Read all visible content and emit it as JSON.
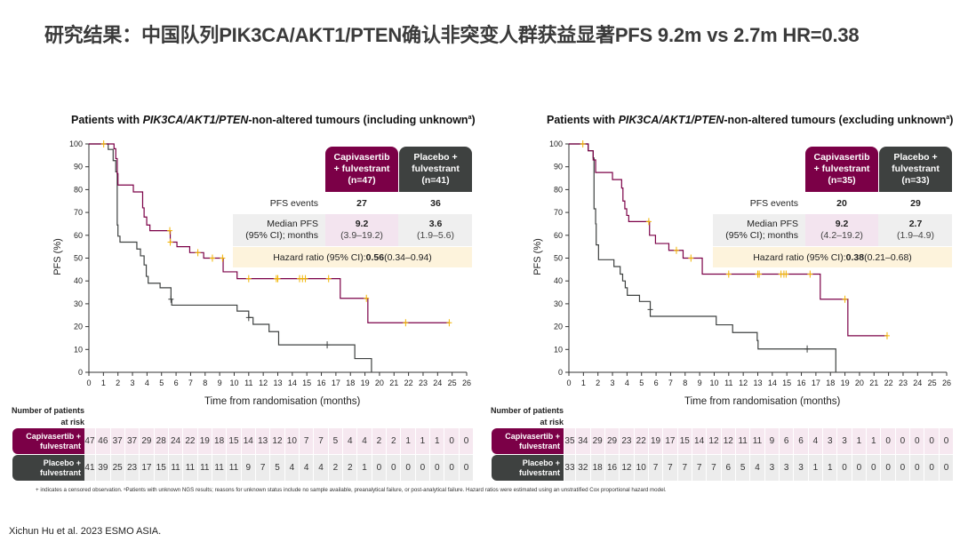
{
  "slide_title": "研究结果：中国队列PIK3CA/AKT1/PTEN确认非突变人群获益显著PFS 9.2m vs 2.7m HR=0.38",
  "footnote": "+ indicates a censored observation. ᵃPatients with unknown NGS results; reasons for unknown status include no sample available, preanalytical failure, or post-analytical failure. Hazard ratios were estimated using an unstratified Cox proportional hazard model.",
  "citation": "Xichun Hu et al. 2023 ESMO ASIA.",
  "colors": {
    "capivasertib": "#7b0047",
    "placebo": "#3e4140",
    "censor": "#f2b400"
  },
  "chart_data": [
    {
      "type": "line",
      "subtype": "kaplan-meier step",
      "title_parts": {
        "pre": "Patients with ",
        "italic": "PIK3CA/AKT1/PTEN",
        "post": "-non-altered tumours (including unknown",
        "sup": "a",
        "end": ")"
      },
      "xlabel": "Time from randomisation (months)",
      "ylabel": "PFS (%)",
      "xlim": [
        0,
        26
      ],
      "ylim": [
        0,
        100
      ],
      "xticks": [
        0,
        1,
        2,
        3,
        4,
        5,
        6,
        7,
        8,
        9,
        10,
        11,
        12,
        13,
        14,
        15,
        16,
        17,
        18,
        19,
        20,
        21,
        22,
        23,
        24,
        25,
        26
      ],
      "yticks": [
        0,
        10,
        20,
        30,
        40,
        50,
        60,
        70,
        80,
        90,
        100
      ],
      "grid": false,
      "series": [
        {
          "name": "Capivasertib + fulvestrant",
          "color": "#7b0047",
          "steps": [
            [
              0,
              100
            ],
            [
              1.73,
              97.9
            ],
            [
              1.85,
              93.6
            ],
            [
              1.95,
              87
            ],
            [
              2.0,
              82
            ],
            [
              3.06,
              79
            ],
            [
              3.7,
              72
            ],
            [
              3.8,
              68
            ],
            [
              3.98,
              64.5
            ],
            [
              4.2,
              62
            ],
            [
              5.6,
              57
            ],
            [
              6.06,
              55
            ],
            [
              6.94,
              52.4
            ],
            [
              7.9,
              50
            ],
            [
              9.24,
              44
            ],
            [
              10.2,
              41
            ],
            [
              17.3,
              32.4
            ],
            [
              19.2,
              21.7
            ]
          ],
          "end": 24.8,
          "censored": [
            [
              1.02,
              100
            ],
            [
              5.57,
              62
            ],
            [
              5.6,
              57
            ],
            [
              7.5,
              52.4
            ],
            [
              8.5,
              50
            ],
            [
              9.2,
              50
            ],
            [
              11.0,
              41
            ],
            [
              12.9,
              41
            ],
            [
              13.0,
              41
            ],
            [
              14.5,
              41
            ],
            [
              14.7,
              41
            ],
            [
              14.9,
              41
            ],
            [
              16.5,
              41
            ],
            [
              19.1,
              32.4
            ],
            [
              21.8,
              21.7
            ],
            [
              24.8,
              21.7
            ]
          ]
        },
        {
          "name": "Placebo + fulvestrant",
          "color": "#3e4140",
          "steps": [
            [
              0,
              100
            ],
            [
              1.33,
              97.6
            ],
            [
              1.67,
              92.7
            ],
            [
              1.85,
              87.8
            ],
            [
              1.95,
              64.5
            ],
            [
              2.0,
              59.6
            ],
            [
              2.14,
              57
            ],
            [
              3.3,
              54
            ],
            [
              3.55,
              51
            ],
            [
              3.8,
              47
            ],
            [
              3.95,
              42
            ],
            [
              4.08,
              39
            ],
            [
              4.9,
              37
            ],
            [
              5.65,
              32
            ],
            [
              5.7,
              29.4
            ],
            [
              10.2,
              26.8
            ],
            [
              11.0,
              24
            ],
            [
              11.3,
              21
            ],
            [
              12.4,
              17.8
            ],
            [
              13.06,
              12
            ],
            [
              18.3,
              6
            ],
            [
              19.45,
              0
            ]
          ],
          "end": 19.45,
          "censored": [
            [
              5.65,
              32
            ],
            [
              11.0,
              24
            ],
            [
              16.4,
              12
            ]
          ]
        }
      ],
      "legend_table": {
        "capi_header": "Capivasertib\n+ fulvestrant\n(n=47)",
        "placebo_header": "Placebo +\nfulvestrant\n(n=41)",
        "pfs_events_label": "PFS events",
        "pfs_events": [
          "27",
          "36"
        ],
        "median_label": "Median PFS\n(95% CI); months",
        "median": [
          "9.2",
          "3.6"
        ],
        "median_ci": [
          "(3.9–19.2)",
          "(1.9–5.6)"
        ],
        "hr_label": "Hazard ratio (95% CI): ",
        "hr_value": "0.56",
        "hr_ci": " (0.34–0.94)"
      },
      "risk_table": {
        "heading": "Number of patients\nat risk",
        "rows": [
          {
            "label": "Capivasertib +\nfulvestrant",
            "values": [
              47,
              46,
              37,
              37,
              29,
              28,
              24,
              22,
              19,
              18,
              15,
              14,
              13,
              12,
              10,
              7,
              7,
              5,
              4,
              4,
              2,
              2,
              1,
              1,
              1,
              0,
              0
            ]
          },
          {
            "label": "Placebo +\nfulvestrant",
            "values": [
              41,
              39,
              25,
              23,
              17,
              15,
              11,
              11,
              11,
              11,
              11,
              9,
              7,
              5,
              4,
              4,
              4,
              2,
              2,
              1,
              0,
              0,
              0,
              0,
              0,
              0,
              0
            ]
          }
        ]
      }
    },
    {
      "type": "line",
      "subtype": "kaplan-meier step",
      "title_parts": {
        "pre": "Patients with ",
        "italic": "PIK3CA/AKT1/PTEN",
        "post": "-non-altered tumours (excluding unknown",
        "sup": "a",
        "end": ")"
      },
      "xlabel": "Time from randomisation (months)",
      "ylabel": "PFS (%)",
      "xlim": [
        0,
        26
      ],
      "ylim": [
        0,
        100
      ],
      "xticks": [
        0,
        1,
        2,
        3,
        4,
        5,
        6,
        7,
        8,
        9,
        10,
        11,
        12,
        13,
        14,
        15,
        16,
        17,
        18,
        19,
        20,
        21,
        22,
        23,
        24,
        25,
        26
      ],
      "yticks": [
        0,
        10,
        20,
        30,
        40,
        50,
        60,
        70,
        80,
        90,
        100
      ],
      "grid": false,
      "series": [
        {
          "name": "Capivasertib + fulvestrant",
          "color": "#7b0047",
          "steps": [
            [
              0,
              100
            ],
            [
              1.33,
              97
            ],
            [
              1.67,
              93
            ],
            [
              1.84,
              87.5
            ],
            [
              3.0,
              84.4
            ],
            [
              3.63,
              80.7
            ],
            [
              3.72,
              75
            ],
            [
              3.85,
              71.6
            ],
            [
              3.98,
              68.7
            ],
            [
              4.12,
              66
            ],
            [
              5.55,
              60
            ],
            [
              5.96,
              56.4
            ],
            [
              6.88,
              53.4
            ],
            [
              7.86,
              50
            ],
            [
              9.18,
              43
            ],
            [
              17.3,
              32
            ],
            [
              19.2,
              16
            ]
          ],
          "end": 21.9,
          "censored": [
            [
              0.96,
              100
            ],
            [
              5.5,
              66
            ],
            [
              7.4,
              53.4
            ],
            [
              8.4,
              50
            ],
            [
              11.0,
              43
            ],
            [
              13.0,
              43
            ],
            [
              13.1,
              43
            ],
            [
              14.6,
              43
            ],
            [
              14.8,
              43
            ],
            [
              14.95,
              43
            ],
            [
              16.6,
              43
            ],
            [
              19.0,
              32
            ],
            [
              21.9,
              16
            ]
          ]
        },
        {
          "name": "Placebo + fulvestrant",
          "color": "#3e4140",
          "steps": [
            [
              0,
              100
            ],
            [
              1.33,
              97
            ],
            [
              1.67,
              93.9
            ],
            [
              1.73,
              71.6
            ],
            [
              1.84,
              65
            ],
            [
              1.88,
              55.8
            ],
            [
              2.04,
              49.3
            ],
            [
              3.1,
              46.3
            ],
            [
              3.53,
              43
            ],
            [
              3.7,
              40
            ],
            [
              3.88,
              37
            ],
            [
              4.02,
              33.7
            ],
            [
              4.86,
              31
            ],
            [
              5.6,
              24.5
            ],
            [
              10.14,
              20.8
            ],
            [
              11.27,
              17.4
            ],
            [
              12.96,
              13.9
            ],
            [
              13.02,
              10.2
            ],
            [
              18.37,
              0
            ]
          ],
          "end": 18.37,
          "censored": [
            [
              5.6,
              27.5
            ],
            [
              16.4,
              10.2
            ]
          ]
        }
      ],
      "legend_table": {
        "capi_header": "Capivasertib\n+ fulvestrant\n(n=35)",
        "placebo_header": "Placebo +\nfulvestrant\n(n=33)",
        "pfs_events_label": "PFS events",
        "pfs_events": [
          "20",
          "29"
        ],
        "median_label": "Median PFS\n(95% CI); months",
        "median": [
          "9.2",
          "2.7"
        ],
        "median_ci": [
          "(4.2–19.2)",
          "(1.9–4.9)"
        ],
        "hr_label": "Hazard ratio (95% CI): ",
        "hr_value": "0.38",
        "hr_ci": " (0.21–0.68)"
      },
      "risk_table": {
        "heading": "Number of patients\nat risk",
        "rows": [
          {
            "label": "Capivasertib +\nfulvestrant",
            "values": [
              35,
              34,
              29,
              29,
              23,
              22,
              19,
              17,
              15,
              14,
              12,
              12,
              11,
              11,
              9,
              6,
              6,
              4,
              3,
              3,
              1,
              1,
              0,
              0,
              0,
              0,
              0
            ]
          },
          {
            "label": "Placebo +\nfulvestrant",
            "values": [
              33,
              32,
              18,
              16,
              12,
              10,
              7,
              7,
              7,
              7,
              7,
              6,
              5,
              4,
              3,
              3,
              3,
              1,
              1,
              0,
              0,
              0,
              0,
              0,
              0,
              0,
              0
            ]
          }
        ]
      }
    }
  ]
}
